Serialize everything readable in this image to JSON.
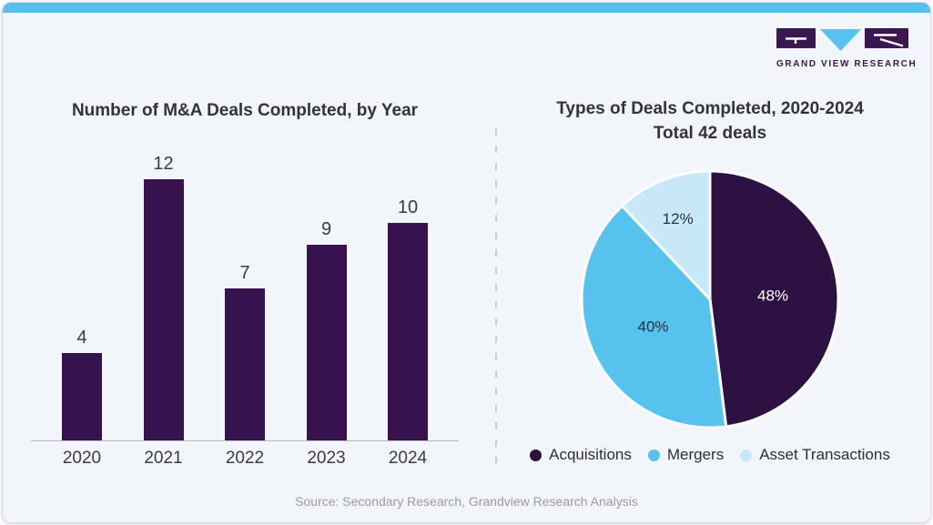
{
  "brand": {
    "name": "GRAND VIEW RESEARCH"
  },
  "theme": {
    "accent_bar": "#55C1EC",
    "card_bg": "#F2F6FA",
    "logo_purple": "#3A1750",
    "logo_blue": "#56C2EE"
  },
  "chart_data": [
    {
      "type": "bar",
      "title": "Number of M&A Deals Completed, by Year",
      "categories": [
        "2020",
        "2021",
        "2022",
        "2023",
        "2024"
      ],
      "values": [
        4,
        12,
        7,
        9,
        10
      ],
      "ylim": [
        0,
        12
      ],
      "bar_color": "#36124E",
      "grid": false,
      "value_labels": true,
      "xlabel": "",
      "ylabel": ""
    },
    {
      "type": "pie",
      "title": "Types of Deals Completed, 2020-2024",
      "subtitle": "Total 42 deals",
      "slices": [
        {
          "label": "Acquisitions",
          "value_pct": 48,
          "color": "#2E1143",
          "label_color": "#FFFFFF"
        },
        {
          "label": "Mergers",
          "value_pct": 40,
          "color": "#56C3EF",
          "label_color": "#2F2F3A"
        },
        {
          "label": "Asset Transactions",
          "value_pct": 12,
          "color": "#C7E8F8",
          "label_color": "#2F2F3A"
        }
      ],
      "start_angle_deg": 0,
      "direction": "clockwise",
      "legend_position": "bottom"
    }
  ],
  "footer": {
    "source": "Source: Secondary Research, Grandview Research Analysis"
  }
}
